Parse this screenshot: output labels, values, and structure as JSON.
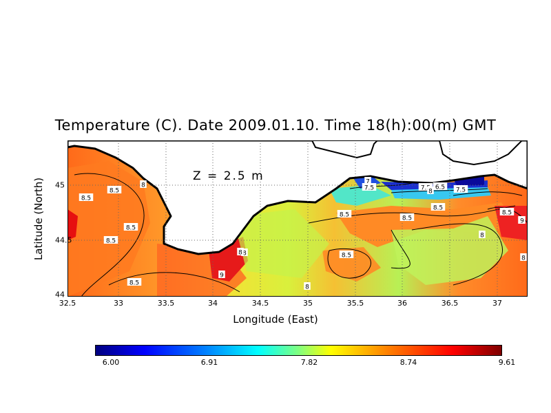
{
  "title": "Temperature (C). Date 2009.01.10. Time 18(h):00(m) GMT",
  "depth_label": "Z = 2.5 m",
  "x_axis": {
    "label": "Longitude (East)",
    "ticks": [
      "32.5",
      "33",
      "33.5",
      "34",
      "34.5",
      "35",
      "35.5",
      "36",
      "36.5",
      "37"
    ]
  },
  "y_axis": {
    "label": "Latitude (North)",
    "ticks": [
      "45",
      "44.5",
      "44"
    ]
  },
  "colorbar": {
    "ticks": [
      "6.00",
      "6.91",
      "7.82",
      "8.74",
      "9.61"
    ]
  },
  "contour_labels": [
    "8.5",
    "8.5",
    "8.5",
    "8.5",
    "8.5",
    "8",
    "9",
    "8",
    "9",
    "8",
    "8",
    "8.5",
    "8.5",
    "7",
    "7.5",
    "7.5",
    "6.5",
    "7.5",
    "8",
    "8.5",
    "8.5",
    "8.5",
    "8",
    "9",
    "8"
  ]
}
